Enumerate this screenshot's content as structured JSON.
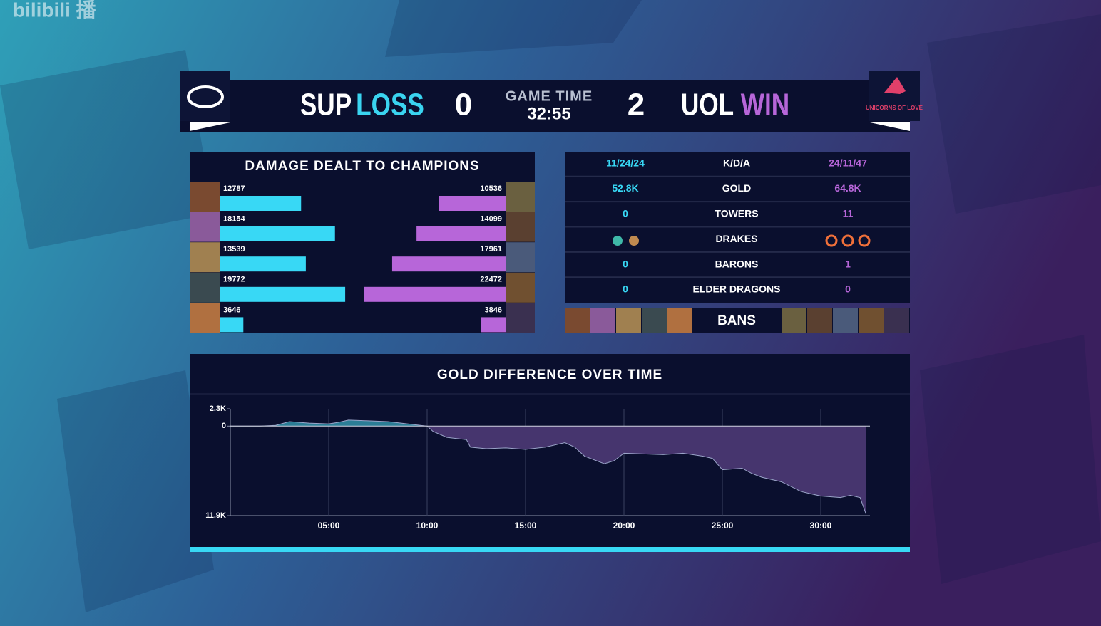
{
  "watermark": "bilibili 播",
  "header": {
    "team1": "SUP",
    "result1": "LOSS",
    "score1": 0,
    "time_label": "GAME TIME",
    "time": "32:55",
    "score2": 2,
    "team2": "UOL",
    "result2": "WIN",
    "team2_logo": "UNICORNS OF LOVE"
  },
  "stats": {
    "rows": [
      {
        "left": "11/24/24",
        "label": "K/D/A",
        "right": "24/11/47"
      },
      {
        "left": "52.8K",
        "label": "GOLD",
        "right": "64.8K"
      },
      {
        "left": "0",
        "label": "TOWERS",
        "right": "11"
      },
      {
        "label": "DRAKES"
      },
      {
        "left": "0",
        "label": "BARONS",
        "right": "1"
      },
      {
        "left": "0",
        "label": "ELDER DRAGONS",
        "right": "0"
      }
    ],
    "bans_label": "BANS"
  },
  "chart_data": [
    {
      "type": "bar",
      "title": "DAMAGE DEALT TO CHAMPIONS",
      "series": [
        {
          "color": "#38d8f5",
          "values": [
            12787,
            18154,
            13539,
            19772,
            3646
          ]
        },
        {
          "color": "#b766d9",
          "values": [
            10536,
            14099,
            17961,
            22472,
            3846
          ]
        }
      ]
    },
    {
      "type": "area",
      "title": "GOLD DIFFERENCE OVER TIME",
      "x": [
        0,
        1.5,
        2.3,
        3,
        4,
        5,
        5.5,
        6,
        7,
        8,
        9,
        10,
        10.3,
        11,
        12,
        12.2,
        13,
        14,
        15,
        16,
        17,
        17.5,
        18,
        19,
        19.5,
        20,
        21,
        22,
        23,
        24,
        24.5,
        25,
        26,
        26.5,
        27,
        28,
        29,
        30,
        31,
        31.5,
        32,
        32.3
      ],
      "series": [
        {
          "values": [
            0,
            0,
            100,
            600,
            400,
            300,
            500,
            800,
            700,
            600,
            300,
            0,
            -700,
            -1500,
            -1800,
            -2800,
            -3000,
            -2900,
            -3100,
            -2800,
            -2200,
            -2800,
            -4000,
            -5000,
            -4600,
            -3600,
            -3700,
            -3800,
            -3600,
            -4000,
            -4300,
            -5800,
            -5600,
            -6300,
            -6800,
            -7400,
            -8700,
            -9300,
            -9500,
            -9200,
            -9500,
            -11700
          ],
          "color": "#46356e",
          "positive_color": "#2b7d96"
        }
      ],
      "xlim": [
        0,
        32.5
      ],
      "ylim": [
        -11900,
        2300
      ],
      "xticks": [
        {
          "value": 5,
          "label": "05:00"
        },
        {
          "value": 10,
          "label": "10:00"
        },
        {
          "value": 15,
          "label": "15:00"
        },
        {
          "value": 20,
          "label": "20:00"
        },
        {
          "value": 25,
          "label": "25:00"
        },
        {
          "value": 30,
          "label": "30:00"
        }
      ],
      "yticks": [
        {
          "value": 2300,
          "label": "2.3K"
        },
        0,
        {
          "value": -11900,
          "label": "11.9K"
        }
      ],
      "grid": true
    }
  ]
}
